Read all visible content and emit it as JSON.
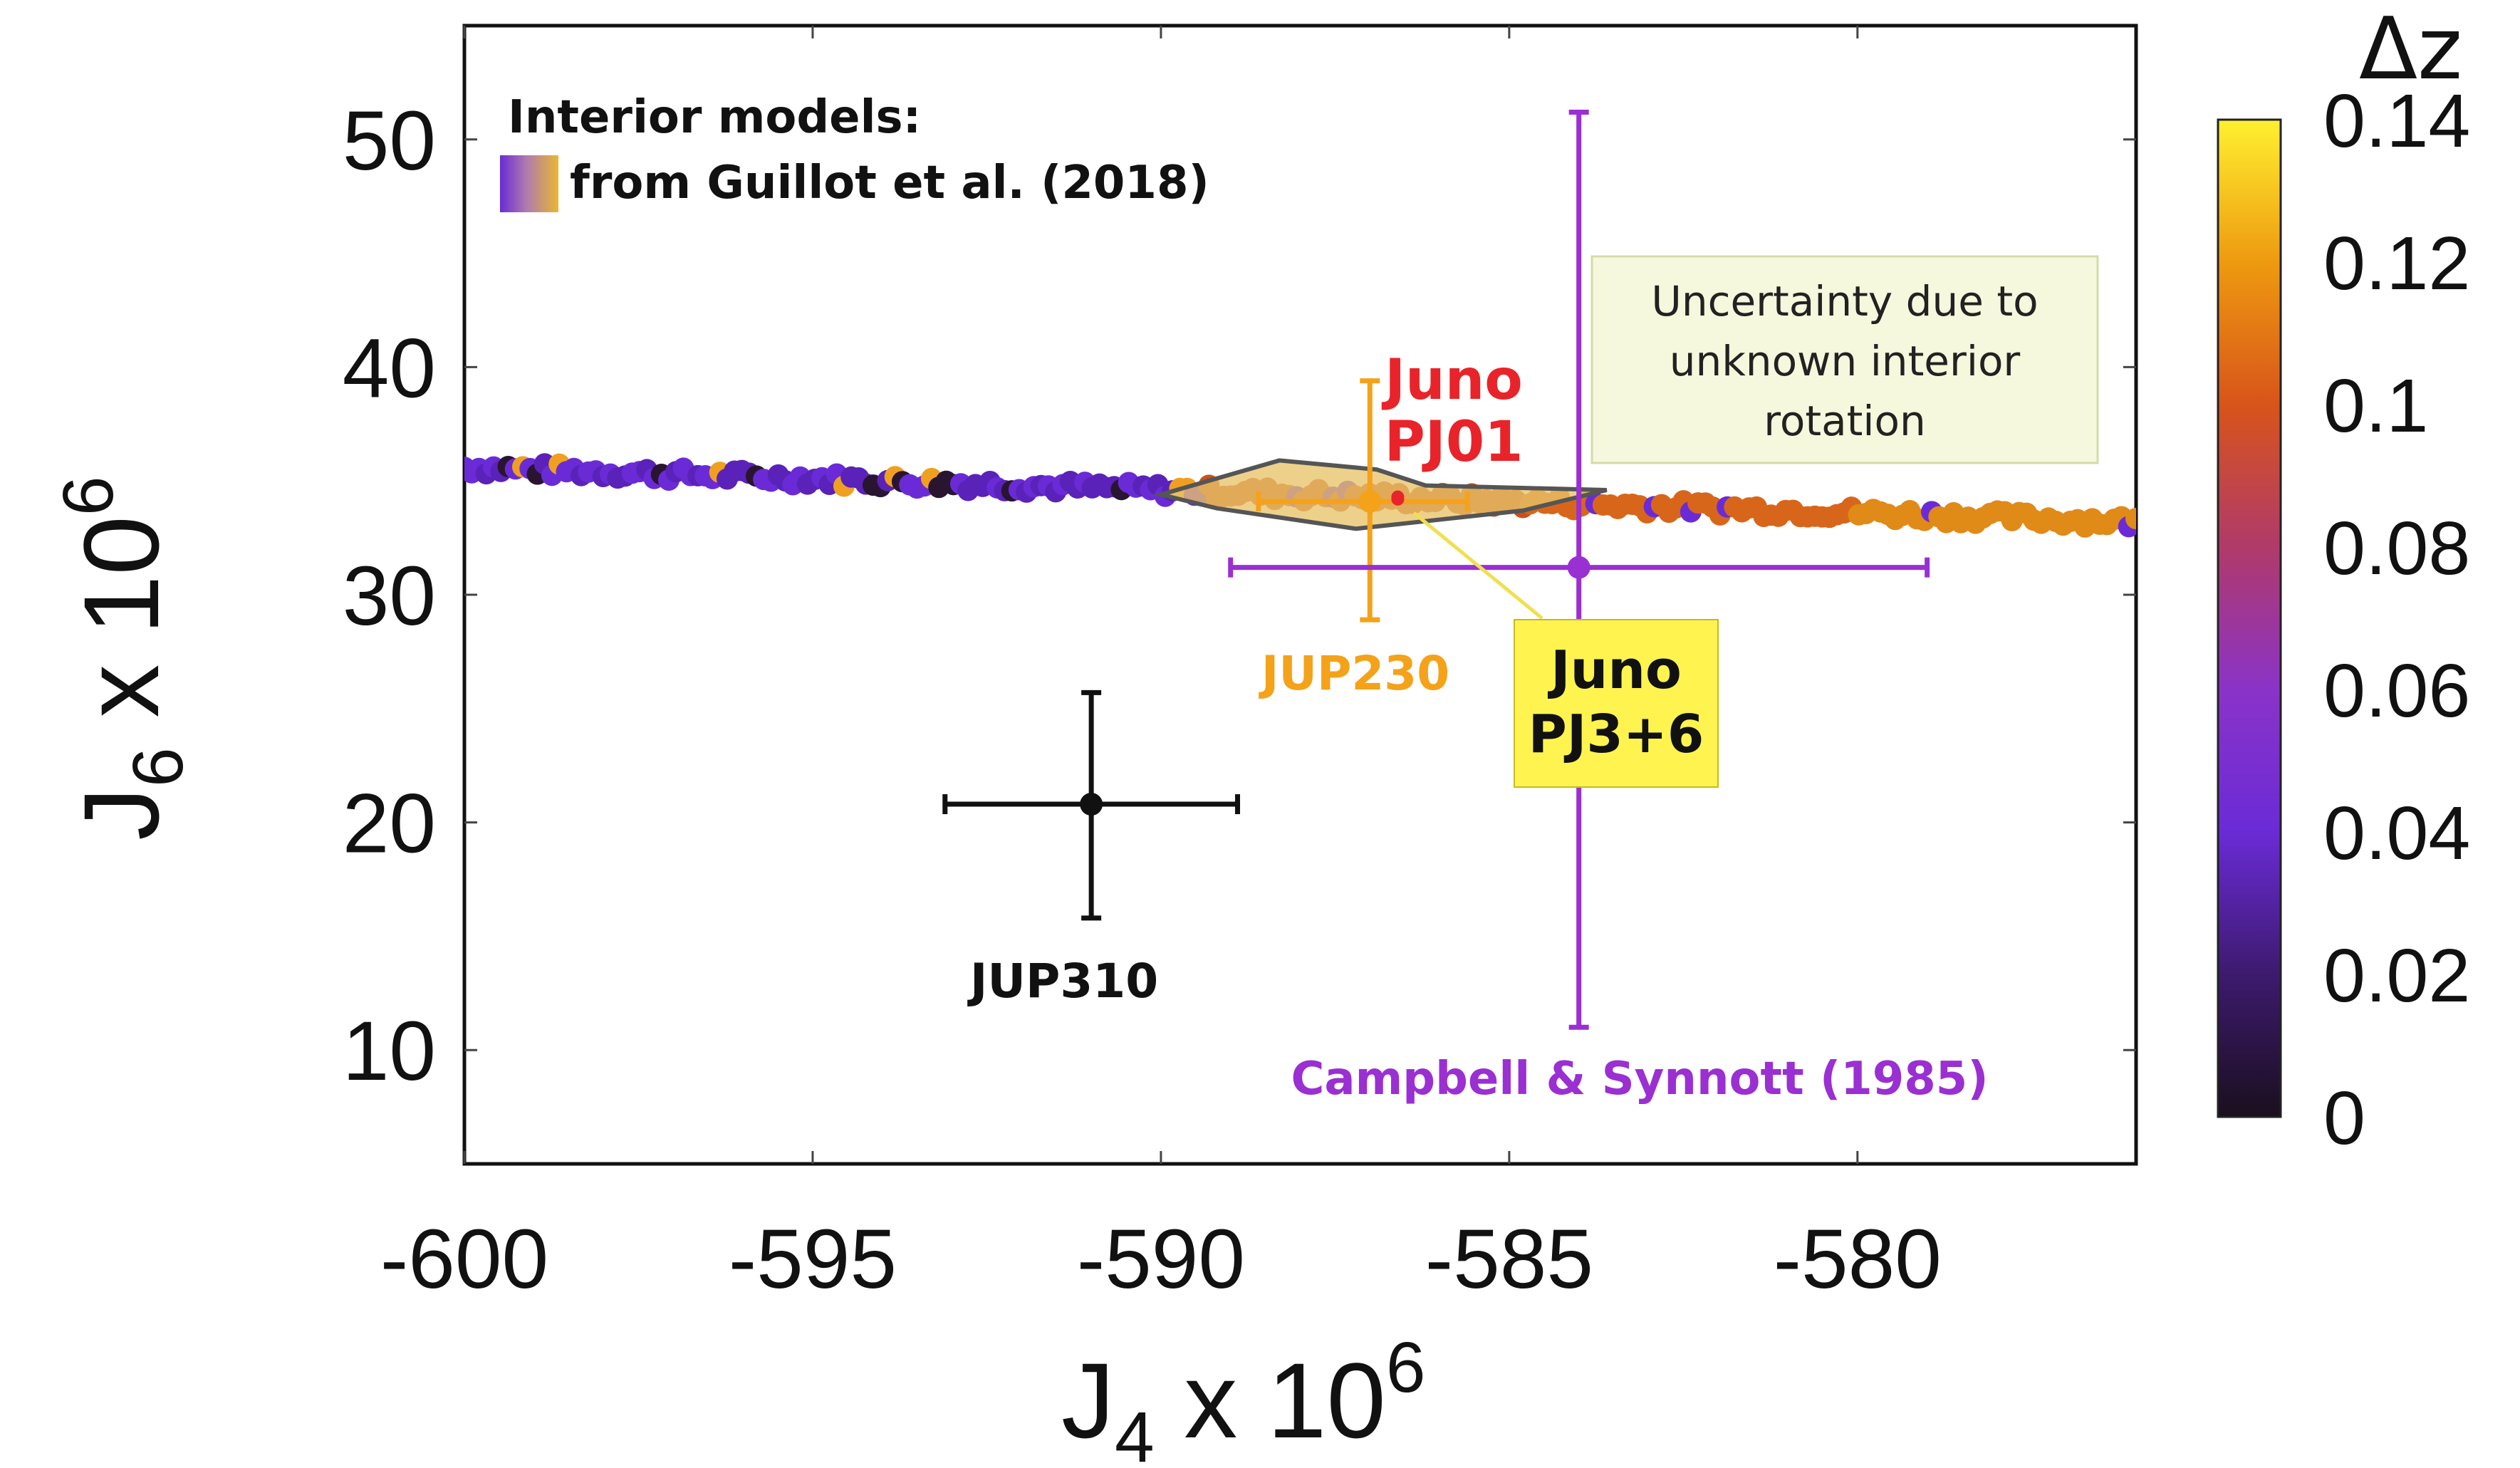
{
  "chart_data": {
    "type": "scatter",
    "title": "",
    "xlabel": "J",
    "xlabel_sub": "4",
    "xlabel_rest": " x 10",
    "xlabel_sup": "6",
    "ylabel": "J",
    "ylabel_sub": "6",
    "ylabel_rest": " x 10",
    "ylabel_sup": "6",
    "xlim": [
      -600,
      -576
    ],
    "ylim": [
      5,
      55
    ],
    "xticks": [
      -600,
      -595,
      -590,
      -585,
      -580
    ],
    "yticks": [
      10,
      20,
      30,
      40,
      50
    ],
    "xtick_labels": [
      "-600",
      "-595",
      "-590",
      "-585",
      "-580"
    ],
    "ytick_labels": [
      "10",
      "20",
      "30",
      "40",
      "50"
    ],
    "grid": false,
    "legend": {
      "title": "Interior models:",
      "entry": "from Guillot et al. (2018)",
      "placement": "top-left"
    },
    "colorbar": {
      "label": "Δz",
      "range": [
        0,
        0.14
      ],
      "ticks": [
        0.14,
        0.12,
        0.1,
        0.08,
        0.06,
        0.04,
        0.02,
        0
      ],
      "tick_labels": [
        "0.14",
        "0.12",
        "0.1",
        "0.08",
        "0.06",
        "0.04",
        "0.02",
        "0"
      ],
      "colors": [
        "#1a0f1e",
        "#3d1a6e",
        "#6a2bd6",
        "#8a33c8",
        "#b03a6a",
        "#d8541a",
        "#ee9a10",
        "#fff030"
      ]
    },
    "model_band": {
      "x_start": -600,
      "y_start": 35.6,
      "x_end": -576,
      "y_end": 33.2,
      "purple_until_x": -589.5
    },
    "measurements": [
      {
        "name": "JUP310",
        "x": -591,
        "y": 20.8,
        "xerr": 2.1,
        "yerr_plus": 4.9,
        "yerr_minus": 5.0,
        "color": "#111111"
      },
      {
        "name": "JUP230",
        "x": -587,
        "y": 34.1,
        "xerr_minus": 1.6,
        "xerr_plus": 1.4,
        "yerr_plus": 5.3,
        "yerr_minus": 5.2,
        "color": "#f4a21a"
      },
      {
        "name": "Campbell & Synnott (1985)",
        "x": -584,
        "y": 31.2,
        "xerr_minus": 5.0,
        "xerr_plus": 5.0,
        "yerr_plus": 20.0,
        "yerr_minus": 20.2,
        "color": "#9a2fd2"
      },
      {
        "name": "Juno PJ01",
        "x": -586.6,
        "y": 34.3,
        "color": "#e8242a"
      },
      {
        "name": "Juno PJ3+6",
        "x": -586.6,
        "y": 34.2,
        "color": "#e8242a"
      }
    ],
    "uncertainty_region": {
      "label": "Uncertainty due to unknown interior rotation",
      "polygon": [
        [
          -590,
          34.4
        ],
        [
          -588.3,
          35.9
        ],
        [
          -586.9,
          35.5
        ],
        [
          -586.2,
          34.8
        ],
        [
          -583.6,
          34.6
        ],
        [
          -584.8,
          33.7
        ],
        [
          -587.2,
          32.9
        ],
        [
          -589.2,
          33.8
        ]
      ]
    }
  },
  "labels": {
    "juno_pj01_line1": "Juno",
    "juno_pj01_line2": "PJ01",
    "juno_pj36_line1": "Juno",
    "juno_pj36_line2": "PJ3+6",
    "jup230": "JUP230",
    "jup310": "JUP310",
    "campbell": "Campbell & Synnott (1985)",
    "uncertainty_line1": "Uncertainty due to",
    "uncertainty_line2": "unknown interior",
    "uncertainty_line3": "rotation"
  },
  "colors": {
    "juno_red": "#e8242a",
    "jup230_orange": "#f4a21a",
    "campbell_purple": "#9a2fd2",
    "callout_yellow": "#fff44f",
    "note_bg": "#f5f8dc",
    "region_fill": "#e8c46a"
  }
}
